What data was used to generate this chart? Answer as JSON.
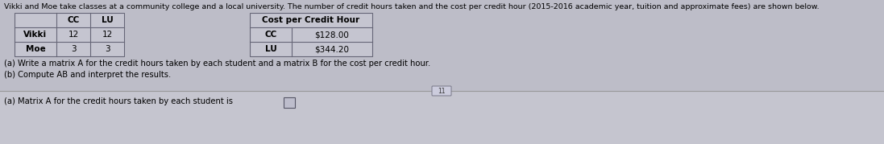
{
  "background_color": "#bdbdc8",
  "top_section_color": "#bdbdc8",
  "bottom_section_color": "#c8c8d2",
  "title_text": "Vikki and Moe take classes at a community college and a local university. The number of credit hours taken and the cost per credit hour (2015-2016 academic year, tuition and approximate fees) are shown below.",
  "title_fontsize": 7.2,
  "table1_headers": [
    "",
    "CC",
    "LU"
  ],
  "table1_rows": [
    [
      "Vikki",
      "12",
      "12"
    ],
    [
      "Moe",
      "3",
      "3"
    ]
  ],
  "table2_headers": [
    "Cost per Credit Hour",
    ""
  ],
  "table2_rows": [
    [
      "CC",
      "$128.00"
    ],
    [
      "LU",
      "$344.20"
    ]
  ],
  "text_line_a": "(a) Write a matrix A for the credit hours taken by each student and a matrix B for the cost per credit hour.",
  "text_line_b": "(b) Compute AB and interpret the results.",
  "bottom_text": "(a) Matrix A for the credit hours taken by each student is",
  "text_color": "#000000",
  "table_line_color": "#666677",
  "table_bg": "#bdbdc8",
  "separator_color": "#aaaaaa",
  "small_button_label": "11",
  "box_answer_color": "#8888aa"
}
